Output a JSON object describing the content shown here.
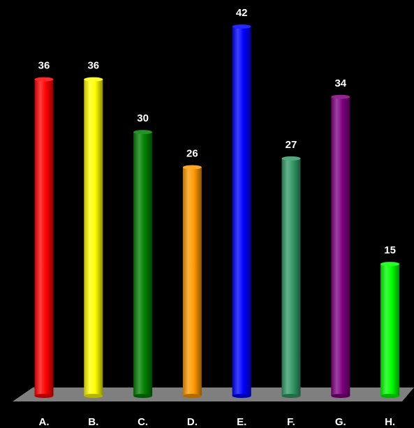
{
  "chart_data": {
    "type": "bar",
    "title": "",
    "xlabel": "",
    "ylabel": "",
    "categories": [
      "A.",
      "B.",
      "C.",
      "D.",
      "E.",
      "F.",
      "G.",
      "H."
    ],
    "values": [
      36,
      36,
      30,
      26,
      42,
      27,
      34,
      15
    ],
    "colors": [
      "#ff0000",
      "#ffff00",
      "#008000",
      "#ff9900",
      "#0000ff",
      "#339966",
      "#800080",
      "#00ff00"
    ],
    "ylim": [
      0,
      42
    ],
    "grid": false,
    "legend": "none",
    "data_labels": true,
    "style": "3d-cylinder",
    "floor_color": "#7f7f7f",
    "background": "#000000"
  }
}
